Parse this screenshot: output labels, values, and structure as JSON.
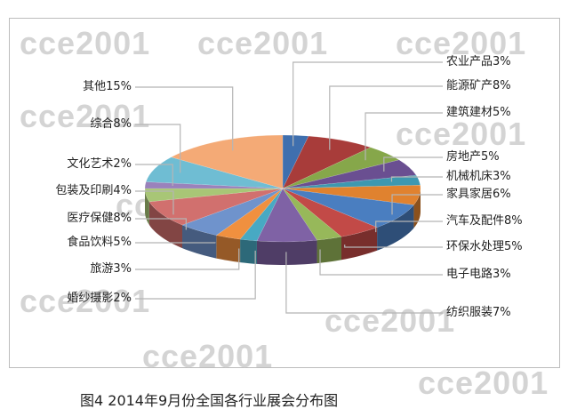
{
  "chart_data": {
    "type": "pie",
    "style": "3d",
    "title": "",
    "categories": [
      "农业产品",
      "能源矿产",
      "建筑建材",
      "房地产",
      "机械机床",
      "家具家居",
      "汽车及配件",
      "环保水处理",
      "电子电路",
      "纺织服装",
      "婚纱摄影",
      "旅游",
      "食品饮料",
      "医疗保健",
      "包装及印刷",
      "文化艺术",
      "综合",
      "其他"
    ],
    "values": [
      3,
      8,
      5,
      5,
      3,
      6,
      8,
      5,
      3,
      7,
      2,
      3,
      5,
      8,
      4,
      2,
      8,
      15
    ],
    "labels": [
      "农业产品3%",
      "能源矿产8%",
      "建筑建材5%",
      "房地产5%",
      "机械机床3%",
      "家具家居6%",
      "汽车及配件8%",
      "环保水处理5%",
      "电子电路3%",
      "纺织服装7%",
      "婚纱摄影2%",
      "旅游3%",
      "食品饮料5%",
      "医疗保健8%",
      "包装及印刷4%",
      "文化艺术2%",
      "综合8%",
      "其他15%"
    ],
    "colors": [
      "#3f6fae",
      "#a83c3a",
      "#86a74a",
      "#6a4f91",
      "#3d98b0",
      "#e0822f",
      "#4a7ec0",
      "#c24a47",
      "#97b85a",
      "#7f62a5",
      "#48a9c3",
      "#f0903f",
      "#6f93cc",
      "#d1706e",
      "#a8c676",
      "#9a82bb",
      "#6fbdd3",
      "#f4aa76"
    ],
    "legend": "none"
  },
  "watermark": "cce2001",
  "caption": "图4 2014年9月份全国各行业展会分布图"
}
